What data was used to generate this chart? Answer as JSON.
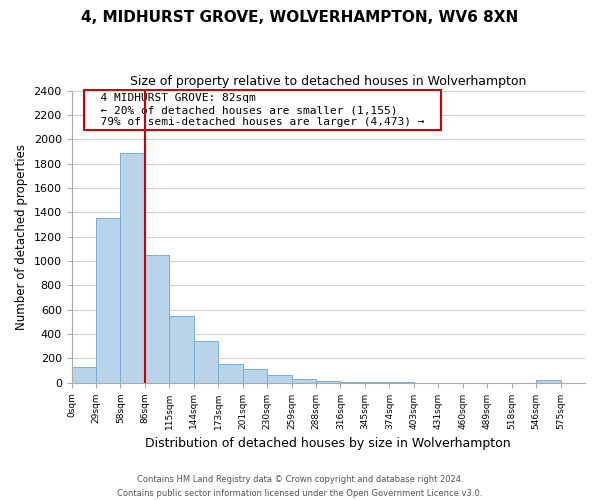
{
  "title": "4, MIDHURST GROVE, WOLVERHAMPTON, WV6 8XN",
  "subtitle": "Size of property relative to detached houses in Wolverhampton",
  "xlabel": "Distribution of detached houses by size in Wolverhampton",
  "ylabel": "Number of detached properties",
  "bar_color": "#b8d4ea",
  "bar_edge_color": "#7aafd4",
  "background_color": "#ffffff",
  "grid_color": "#d0d0d0",
  "bin_labels": [
    "0sqm",
    "29sqm",
    "58sqm",
    "86sqm",
    "115sqm",
    "144sqm",
    "173sqm",
    "201sqm",
    "230sqm",
    "259sqm",
    "288sqm",
    "316sqm",
    "345sqm",
    "374sqm",
    "403sqm",
    "431sqm",
    "460sqm",
    "489sqm",
    "518sqm",
    "546sqm",
    "575sqm"
  ],
  "bar_heights": [
    125,
    1350,
    1890,
    1050,
    550,
    340,
    155,
    110,
    60,
    28,
    12,
    5,
    2,
    1,
    0,
    0,
    0,
    0,
    0,
    18,
    0
  ],
  "ylim": [
    0,
    2400
  ],
  "yticks": [
    0,
    200,
    400,
    600,
    800,
    1000,
    1200,
    1400,
    1600,
    1800,
    2000,
    2200,
    2400
  ],
  "vline_x_index": 3,
  "vline_color": "#cc0000",
  "annotation_title": "4 MIDHURST GROVE: 82sqm",
  "annotation_line1": "← 20% of detached houses are smaller (1,155)",
  "annotation_line2": "79% of semi-detached houses are larger (4,473) →",
  "annotation_box_color": "#ffffff",
  "annotation_box_edge": "#cc0000",
  "footer_line1": "Contains HM Land Registry data © Crown copyright and database right 2024.",
  "footer_line2": "Contains public sector information licensed under the Open Government Licence v3.0."
}
